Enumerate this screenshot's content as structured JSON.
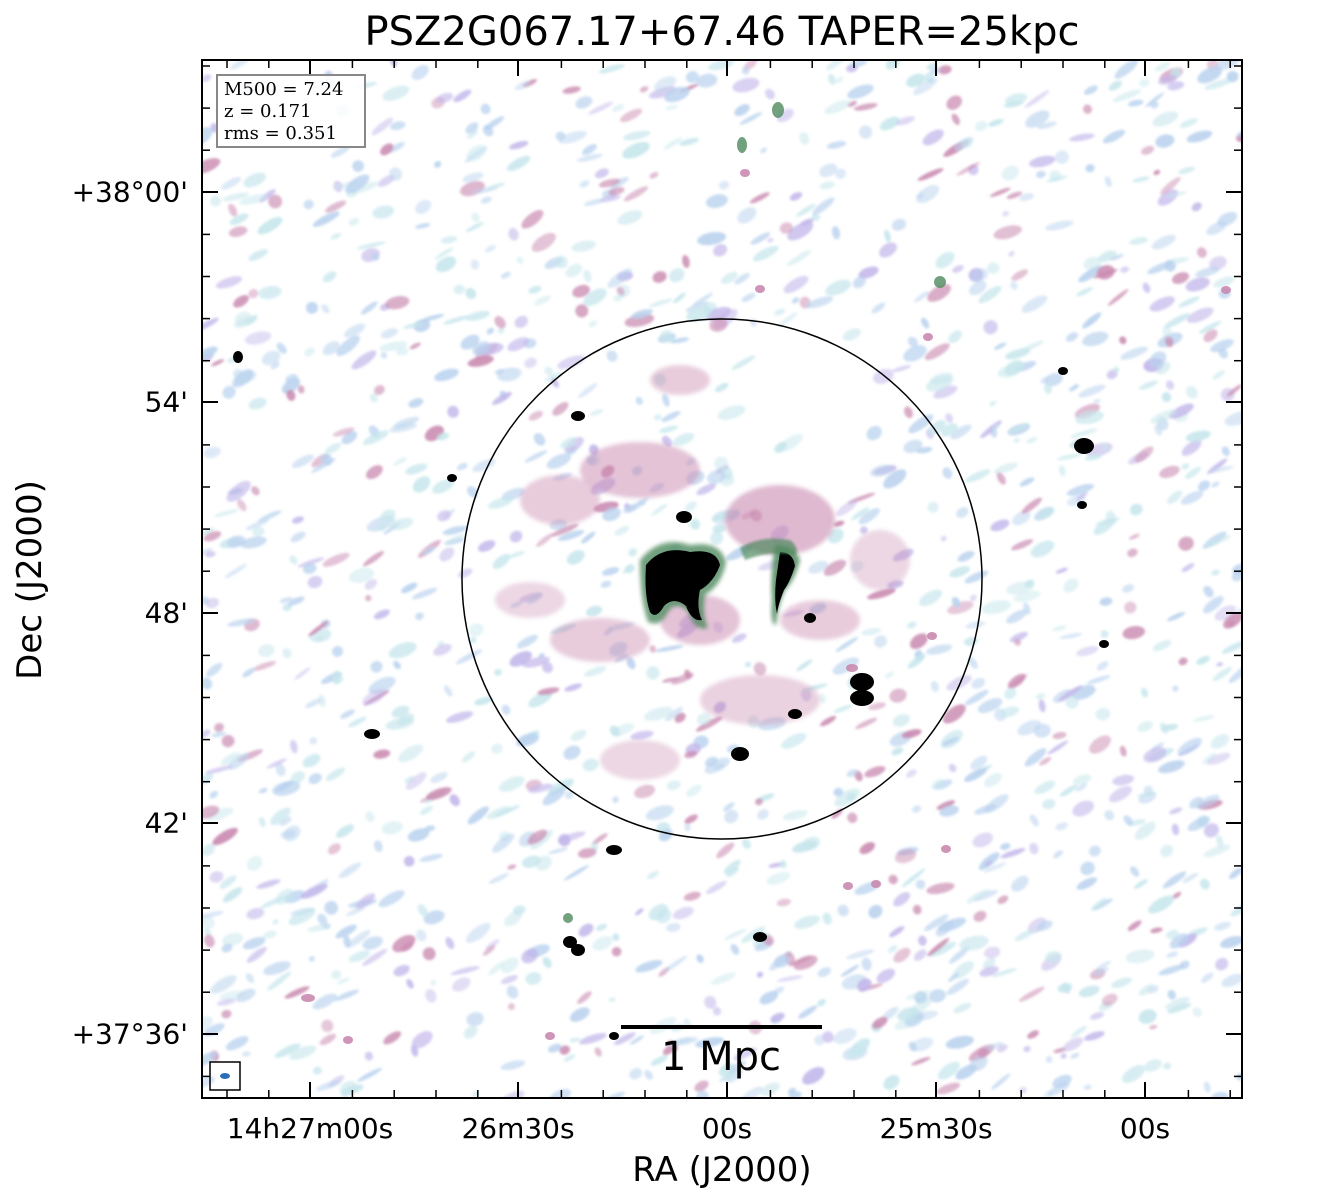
{
  "title": "PSZ2G067.17+67.46 TAPER=25kpc",
  "xlabel": "RA (J2000)",
  "ylabel": "Dec (J2000)",
  "yticks": [
    "+38°00'",
    "54'",
    "48'",
    "42'",
    "+37°36'"
  ],
  "xticks": [
    "14h27m00s",
    "26m30s",
    "00s",
    "25m30s",
    "00s"
  ],
  "info": {
    "mass": "M500 = 7.24",
    "redshift": "z = 0.171",
    "rms": "rms = 0.351"
  },
  "scalebar": {
    "label": "1 Mpc"
  },
  "colors": {
    "noise_light": "#b9d2ee",
    "noise_cyan": "#c6e6ec",
    "noise_violet": "#c2b6ea",
    "noise_pink": "#c98ab0",
    "emission_green": "#4f8a5e",
    "emission_core": "#000000",
    "beam": "#2a6fb5"
  }
}
